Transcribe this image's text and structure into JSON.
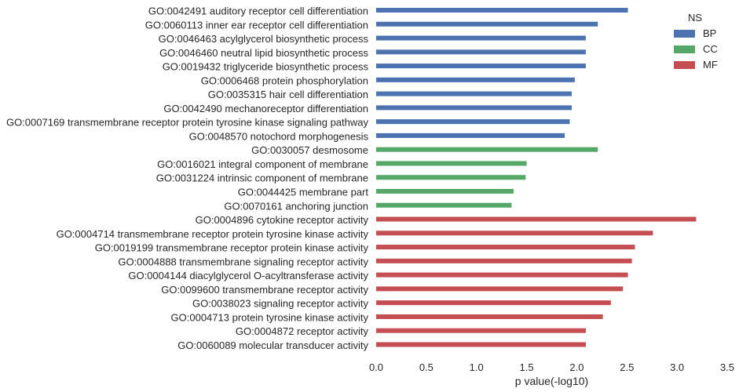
{
  "chart_data": {
    "type": "bar",
    "orientation": "horizontal",
    "xlabel": "p value(-log10)",
    "xlim": [
      0,
      3.5
    ],
    "xticks": [
      "0.0",
      "0.5",
      "1.0",
      "1.5",
      "2.0",
      "2.5",
      "3.0",
      "3.5"
    ],
    "grid": false,
    "legend": {
      "title": "NS",
      "position": "top-right",
      "entries": [
        {
          "name": "BP",
          "color": "#4c72b0"
        },
        {
          "name": "CC",
          "color": "#55a868"
        },
        {
          "name": "MF",
          "color": "#c44e52"
        }
      ]
    },
    "bars": [
      {
        "label": "GO:0042491 auditory receptor cell differentiation",
        "value": 2.51,
        "ns": "BP"
      },
      {
        "label": "GO:0060113 inner ear receptor cell differentiation",
        "value": 2.21,
        "ns": "BP"
      },
      {
        "label": "GO:0046463 acylglycerol biosynthetic process",
        "value": 2.09,
        "ns": "BP"
      },
      {
        "label": "GO:0046460 neutral lipid biosynthetic process",
        "value": 2.09,
        "ns": "BP"
      },
      {
        "label": "GO:0019432 triglyceride biosynthetic process",
        "value": 2.09,
        "ns": "BP"
      },
      {
        "label": "GO:0006468 protein phosphorylation",
        "value": 1.98,
        "ns": "BP"
      },
      {
        "label": "GO:0035315 hair cell differentiation",
        "value": 1.95,
        "ns": "BP"
      },
      {
        "label": "GO:0042490 mechanoreceptor differentiation",
        "value": 1.95,
        "ns": "BP"
      },
      {
        "label": "GO:0007169 transmembrane receptor protein tyrosine kinase signaling pathway",
        "value": 1.93,
        "ns": "BP"
      },
      {
        "label": "GO:0048570 notochord morphogenesis",
        "value": 1.88,
        "ns": "BP"
      },
      {
        "label": "GO:0030057 desmosome",
        "value": 2.21,
        "ns": "CC"
      },
      {
        "label": "GO:0016021 integral component of membrane",
        "value": 1.5,
        "ns": "CC"
      },
      {
        "label": "GO:0031224 intrinsic component of membrane",
        "value": 1.49,
        "ns": "CC"
      },
      {
        "label": "GO:0044425 membrane part",
        "value": 1.37,
        "ns": "CC"
      },
      {
        "label": "GO:0070161 anchoring junction",
        "value": 1.35,
        "ns": "CC"
      },
      {
        "label": "GO:0004896 cytokine receptor activity",
        "value": 3.19,
        "ns": "MF"
      },
      {
        "label": "GO:0004714 transmembrane receptor protein tyrosine kinase activity",
        "value": 2.76,
        "ns": "MF"
      },
      {
        "label": "GO:0019199 transmembrane receptor protein kinase activity",
        "value": 2.58,
        "ns": "MF"
      },
      {
        "label": "GO:0004888 transmembrane signaling receptor activity",
        "value": 2.55,
        "ns": "MF"
      },
      {
        "label": "GO:0004144 diacylglycerol O-acyltransferase activity",
        "value": 2.51,
        "ns": "MF"
      },
      {
        "label": "GO:0099600 transmembrane receptor activity",
        "value": 2.46,
        "ns": "MF"
      },
      {
        "label": "GO:0038023 signaling receptor activity",
        "value": 2.34,
        "ns": "MF"
      },
      {
        "label": "GO:0004713 protein tyrosine kinase activity",
        "value": 2.26,
        "ns": "MF"
      },
      {
        "label": "GO:0004872 receptor activity",
        "value": 2.09,
        "ns": "MF"
      },
      {
        "label": "GO:0060089 molecular transducer activity",
        "value": 2.09,
        "ns": "MF"
      }
    ]
  }
}
